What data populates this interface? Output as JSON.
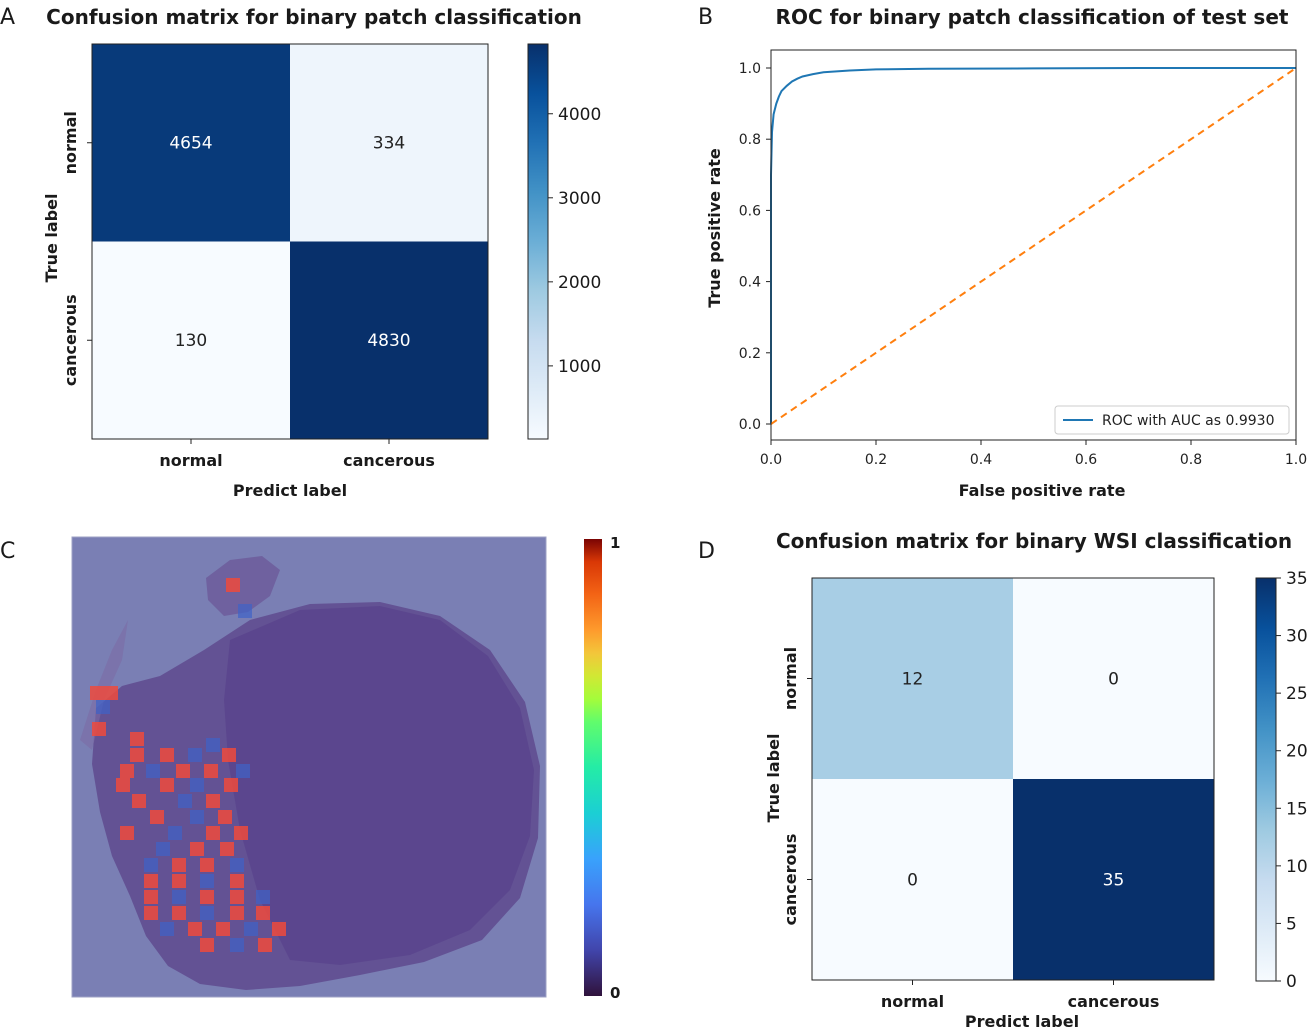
{
  "panel_letters": [
    "A",
    "B",
    "C",
    "D"
  ],
  "colors": {
    "blues": [
      "#f7fbff",
      "#deebf7",
      "#c6dbef",
      "#9ecae1",
      "#6baed6",
      "#4292c6",
      "#2171b5",
      "#08519c",
      "#08306b"
    ],
    "roc_line": "#1f77b4",
    "chance_line": "#ff7f0e",
    "heat_overlay": "#7a7fb4",
    "heat_tissue": "#5e4a8f",
    "heat_hot": "#ef4a3c"
  },
  "chart_data": [
    {
      "id": "A",
      "type": "heatmap",
      "title": "Confusion matrix for binary patch classification",
      "xlabel": "Predict label",
      "ylabel": "True label",
      "x_categories": [
        "normal",
        "cancerous"
      ],
      "y_categories": [
        "normal",
        "cancerous"
      ],
      "values": [
        [
          4654,
          334
        ],
        [
          130,
          4830
        ]
      ],
      "colorbar": {
        "range": [
          130,
          4830
        ],
        "ticks": [
          1000,
          2000,
          3000,
          4000
        ]
      }
    },
    {
      "id": "B",
      "type": "line",
      "title": "ROC for binary patch classification of test set",
      "xlabel": "False positive rate",
      "ylabel": "True positive rate",
      "xlim": [
        0,
        1
      ],
      "ylim": [
        0,
        1
      ],
      "xticks": [
        0.0,
        0.2,
        0.4,
        0.6,
        0.8,
        1.0
      ],
      "yticks": [
        0.0,
        0.2,
        0.4,
        0.6,
        0.8,
        1.0
      ],
      "series": [
        {
          "name": "ROC with AUC as 0.9930",
          "style": "solid",
          "x": [
            0,
            0,
            0.002,
            0.005,
            0.01,
            0.015,
            0.02,
            0.03,
            0.04,
            0.05,
            0.06,
            0.08,
            0.1,
            0.15,
            0.2,
            0.3,
            0.5,
            0.7,
            1.0
          ],
          "y": [
            0,
            0.7,
            0.82,
            0.87,
            0.9,
            0.92,
            0.935,
            0.95,
            0.962,
            0.97,
            0.976,
            0.983,
            0.988,
            0.993,
            0.996,
            0.998,
            0.999,
            1.0,
            1.0
          ]
        },
        {
          "name": "chance",
          "style": "dashed",
          "x": [
            0,
            1
          ],
          "y": [
            0,
            1
          ]
        }
      ],
      "legend": {
        "text": "ROC with AUC as 0.9930",
        "position": "lower-right"
      }
    },
    {
      "id": "C",
      "type": "heatmap",
      "title": "",
      "description": "WSI tumor probability overlay",
      "colorbar": {
        "range": [
          0,
          1
        ],
        "ticks": [
          0,
          1
        ],
        "tick_labels": [
          "0",
          "1"
        ]
      }
    },
    {
      "id": "D",
      "type": "heatmap",
      "title": "Confusion matrix for binary WSI classification",
      "xlabel": "Predict label",
      "ylabel": "True label",
      "x_categories": [
        "normal",
        "cancerous"
      ],
      "y_categories": [
        "normal",
        "cancerous"
      ],
      "values": [
        [
          12,
          0
        ],
        [
          0,
          35
        ]
      ],
      "colorbar": {
        "range": [
          0,
          35
        ],
        "ticks": [
          0,
          5,
          10,
          15,
          20,
          25,
          30,
          35
        ],
        "tick_labels": [
          "0",
          "5",
          "10",
          "15",
          "20",
          "25",
          "30",
          "35"
        ]
      }
    }
  ]
}
